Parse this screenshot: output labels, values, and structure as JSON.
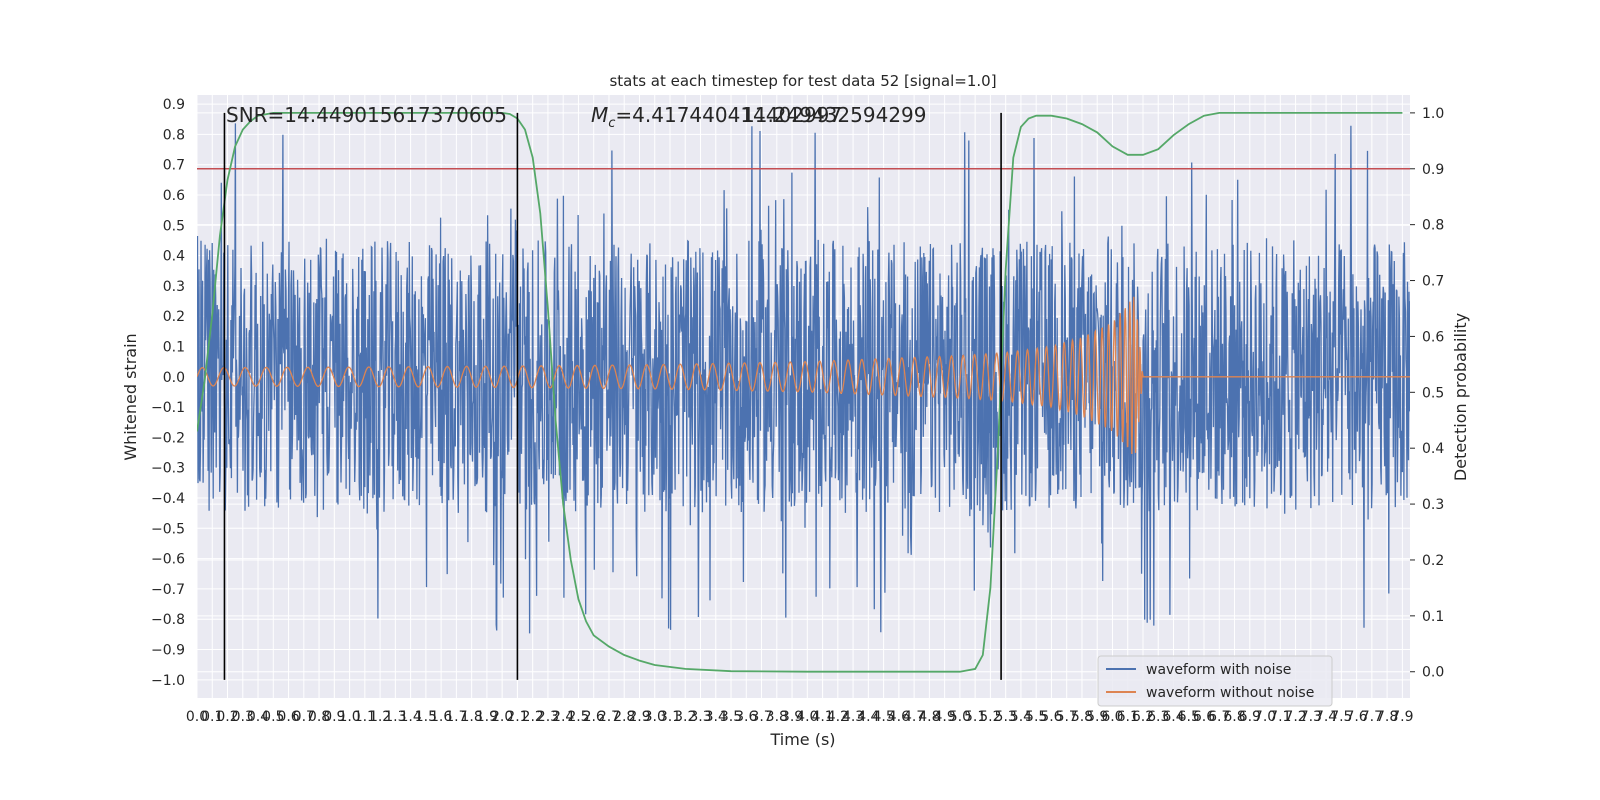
{
  "chart_data": {
    "type": "line",
    "title": "stats at each timestep for test data 52 [signal=1.0]",
    "xlabel": "Time (s)",
    "ylabel_left": "Whitened strain",
    "ylabel_right": "Detection probability",
    "xlim": [
      0.0,
      7.95
    ],
    "ylim_left": [
      -1.06,
      0.93
    ],
    "ylim_right": [
      -0.047,
      1.032
    ],
    "x_ticks": [
      0.0,
      0.1,
      0.2,
      0.3,
      0.4,
      0.5,
      0.6,
      0.7,
      0.8,
      0.9,
      1.0,
      1.1,
      1.2,
      1.3,
      1.4,
      1.5,
      1.6,
      1.7,
      1.8,
      1.9,
      2.0,
      2.1,
      2.2,
      2.3,
      2.4,
      2.5,
      2.6,
      2.7,
      2.8,
      2.9,
      3.0,
      3.1,
      3.2,
      3.3,
      3.4,
      3.5,
      3.6,
      3.7,
      3.8,
      3.9,
      4.0,
      4.1,
      4.2,
      4.3,
      4.4,
      4.5,
      4.6,
      4.7,
      4.8,
      4.9,
      5.0,
      5.1,
      5.2,
      5.3,
      5.4,
      5.5,
      5.6,
      5.7,
      5.8,
      5.9,
      6.0,
      6.1,
      6.2,
      6.3,
      6.4,
      6.5,
      6.6,
      6.7,
      6.8,
      6.9,
      7.0,
      7.1,
      7.2,
      7.3,
      7.4,
      7.5,
      7.6,
      7.7,
      7.8,
      7.9
    ],
    "x_tick_labels": [
      "0.0",
      "0.1",
      "0.2",
      "0.3",
      "0.4",
      "0.5",
      "0.6",
      "0.7",
      "0.8",
      "0.9",
      "1.0",
      "1.1",
      "1.2",
      "1.3",
      "1.4",
      "1.5",
      "1.6",
      "1.7",
      "1.8",
      "1.9",
      "2.0",
      "2.1",
      "2.2",
      "2.3",
      "2.4",
      "2.5",
      "2.6",
      "2.7",
      "2.8",
      "2.9",
      "3.0",
      "3.1",
      "3.2",
      "3.3",
      "3.4",
      "3.5",
      "3.6",
      "3.7",
      "3.8",
      "3.9",
      "4.0",
      "4.1",
      "4.2",
      "4.3",
      "4.4",
      "4.5",
      "4.6",
      "4.7",
      "4.8",
      "4.9",
      "5.0",
      "5.1",
      "5.2",
      "5.3",
      "5.4",
      "5.5",
      "5.6",
      "5.7",
      "5.8",
      "5.9",
      "6.0",
      "6.1",
      "6.2",
      "6.3",
      "6.4",
      "6.5",
      "6.6",
      "6.7",
      "6.8",
      "6.9",
      "7.0",
      "7.1",
      "7.2",
      "7.3",
      "7.4",
      "7.5",
      "7.6",
      "7.7",
      "7.8",
      "7.9"
    ],
    "y_left_ticks": [
      0.9,
      0.8,
      0.7,
      0.6,
      0.5,
      0.4,
      0.3,
      0.2,
      0.1,
      0.0,
      -0.1,
      -0.2,
      -0.3,
      -0.4,
      -0.5,
      -0.6,
      -0.7,
      -0.8,
      -0.9,
      -1.0
    ],
    "y_left_tick_labels": [
      "0.9",
      "0.8",
      "0.7",
      "0.6",
      "0.5",
      "0.4",
      "0.3",
      "0.2",
      "0.1",
      "0.0",
      "−0.1",
      "−0.2",
      "−0.3",
      "−0.4",
      "−0.5",
      "−0.6",
      "−0.7",
      "−0.8",
      "−0.9",
      "−1.0"
    ],
    "y_right_ticks": [
      1.0,
      0.9,
      0.8,
      0.7,
      0.6,
      0.5,
      0.4,
      0.3,
      0.2,
      0.1,
      0.0
    ],
    "y_right_tick_labels": [
      "1.0",
      "0.9",
      "0.8",
      "0.7",
      "0.6",
      "0.5",
      "0.4",
      "0.3",
      "0.2",
      "0.1",
      "0.0"
    ],
    "series": [
      {
        "name": "waveform with noise",
        "color": "#4c72b0",
        "axis": "left",
        "noise_amplitude_typical": 0.45,
        "noise_peak": 0.85
      },
      {
        "name": "waveform without noise",
        "color": "#dd8452",
        "axis": "left",
        "envelope_t": [
          0.0,
          1.0,
          2.0,
          3.0,
          4.0,
          5.0,
          5.3,
          5.6,
          5.8,
          6.0,
          6.1,
          6.15,
          6.2
        ],
        "envelope_a": [
          0.03,
          0.032,
          0.035,
          0.04,
          0.05,
          0.07,
          0.08,
          0.1,
          0.13,
          0.18,
          0.24,
          0.27,
          0.0
        ],
        "merger_time": 6.2
      },
      {
        "name": "detection probability",
        "color": "#55a868",
        "axis": "right",
        "t": [
          0.0,
          0.05,
          0.1,
          0.15,
          0.2,
          0.25,
          0.3,
          0.35,
          0.4,
          0.5,
          0.6,
          0.8,
          1.0,
          1.5,
          2.0,
          2.05,
          2.1,
          2.15,
          2.2,
          2.25,
          2.3,
          2.35,
          2.4,
          2.45,
          2.5,
          2.55,
          2.6,
          2.7,
          2.8,
          2.9,
          3.0,
          3.2,
          3.5,
          4.0,
          4.5,
          5.0,
          5.1,
          5.15,
          5.2,
          5.25,
          5.3,
          5.35,
          5.4,
          5.45,
          5.5,
          5.6,
          5.7,
          5.8,
          5.9,
          6.0,
          6.1,
          6.2,
          6.3,
          6.4,
          6.5,
          6.6,
          6.7,
          6.8,
          7.0,
          7.5,
          7.9
        ],
        "p": [
          0.43,
          0.52,
          0.64,
          0.78,
          0.88,
          0.94,
          0.97,
          0.985,
          0.995,
          1.0,
          1.0,
          1.0,
          1.0,
          1.0,
          1.0,
          0.998,
          0.99,
          0.97,
          0.92,
          0.82,
          0.65,
          0.45,
          0.3,
          0.2,
          0.13,
          0.09,
          0.065,
          0.045,
          0.03,
          0.02,
          0.012,
          0.005,
          0.001,
          0.0,
          0.0,
          0.0,
          0.005,
          0.03,
          0.15,
          0.4,
          0.72,
          0.92,
          0.975,
          0.99,
          0.995,
          0.995,
          0.99,
          0.98,
          0.965,
          0.94,
          0.925,
          0.925,
          0.935,
          0.96,
          0.98,
          0.995,
          1.0,
          1.0,
          1.0,
          1.0,
          1.0
        ]
      },
      {
        "name": "threshold",
        "color": "#c44e52",
        "axis": "right",
        "value": 0.9
      }
    ],
    "vertical_markers": [
      0.18,
      2.1,
      5.27
    ],
    "annotations": [
      {
        "text": "SNR=14.449015617370605",
        "x": 0.18
      },
      {
        "text_prefix": "M",
        "text_sub": "c",
        "text_rest": "=4.417440414402997",
        "x": 2.6
      },
      {
        "text": "11.249432594299",
        "x": 3.6
      }
    ],
    "legend": {
      "location": "lower right",
      "items": [
        "waveform with noise",
        "waveform without noise"
      ]
    }
  }
}
